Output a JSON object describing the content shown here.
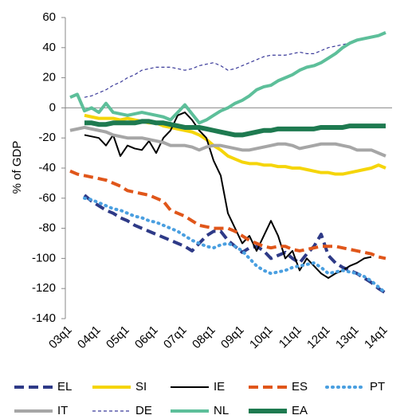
{
  "chart_data": {
    "type": "line",
    "y_label": "% of GDP",
    "categories": [
      "03q1",
      null,
      null,
      null,
      "04q1",
      null,
      null,
      null,
      "05q1",
      null,
      null,
      null,
      "06q1",
      null,
      null,
      null,
      "07q1",
      null,
      null,
      null,
      "08q1",
      null,
      null,
      null,
      "09q1",
      null,
      null,
      null,
      "10q1",
      null,
      null,
      null,
      "11q1",
      null,
      null,
      null,
      "12q1",
      null,
      null,
      null,
      "13q1",
      null,
      null,
      null,
      "14q1"
    ],
    "ylim": [
      -140,
      60
    ],
    "yticks": [
      -140,
      -120,
      -100,
      -80,
      -60,
      -40,
      -20,
      0,
      20,
      40,
      60
    ],
    "zero_line": true,
    "legend": "bottom",
    "series": [
      {
        "name": "EL",
        "color": "#2e3a87",
        "style": "dashed",
        "values": [
          null,
          null,
          -58,
          -62,
          -65,
          -68,
          -70,
          -73,
          -75,
          -78,
          -80,
          -82,
          -84,
          -86,
          -88,
          -90,
          -92,
          -95,
          -90,
          -85,
          -82,
          -82,
          -88,
          -92,
          -96,
          -93,
          -92,
          -95,
          -100,
          -98,
          -96,
          -100,
          -103,
          -97,
          -92,
          -84,
          -98,
          -103,
          -106,
          -108,
          -110,
          -113,
          -116,
          -120,
          -123
        ]
      },
      {
        "name": "SI",
        "color": "#f5d50a",
        "style": "solid",
        "values": [
          null,
          null,
          -5,
          -6,
          -7,
          -7,
          -7,
          -8,
          -7,
          -8,
          -9,
          -10,
          -10,
          -12,
          -13,
          -14,
          -15,
          -16,
          -18,
          -21,
          -25,
          -28,
          -32,
          -34,
          -36,
          -37,
          -37,
          -38,
          -38,
          -39,
          -39,
          -40,
          -40,
          -41,
          -42,
          -43,
          -43,
          -44,
          -44,
          -43,
          -42,
          -41,
          -40,
          -38,
          -40
        ]
      },
      {
        "name": "IE",
        "color": "#000000",
        "style": "thin",
        "values": [
          null,
          null,
          -18,
          -19,
          -20,
          -25,
          -18,
          -32,
          -25,
          -27,
          -28,
          -22,
          -30,
          -20,
          -15,
          -5,
          -3,
          -8,
          -15,
          -20,
          -35,
          -45,
          -70,
          -80,
          -90,
          -85,
          -95,
          -85,
          -75,
          -85,
          -100,
          -95,
          -108,
          -100,
          -105,
          -110,
          -113,
          -110,
          -108,
          -105,
          -103,
          -100,
          -99,
          null,
          null
        ]
      },
      {
        "name": "ES",
        "color": "#e0561a",
        "style": "dashed",
        "values": [
          -42,
          -44,
          -45,
          -46,
          -47,
          -48,
          -50,
          -52,
          -55,
          -56,
          -57,
          -58,
          -60,
          -62,
          -68,
          -70,
          -72,
          -75,
          -78,
          -79,
          -80,
          -80,
          -80,
          -82,
          -85,
          -88,
          -90,
          -92,
          -93,
          -92,
          -92,
          -94,
          -95,
          -94,
          -93,
          -92,
          -92,
          -92,
          -93,
          -94,
          -95,
          -96,
          -97,
          -99,
          -100
        ]
      },
      {
        "name": "PT",
        "color": "#4a9fe0",
        "style": "dotted",
        "values": [
          null,
          null,
          -60,
          -61,
          -63,
          -65,
          -67,
          -68,
          -70,
          -72,
          -73,
          -75,
          -76,
          -78,
          -80,
          -82,
          -85,
          -88,
          -90,
          -92,
          -93,
          -91,
          -90,
          -92,
          -95,
          -100,
          -105,
          -108,
          -110,
          -109,
          -108,
          -106,
          -105,
          -104,
          -103,
          -106,
          -110,
          -109,
          -108,
          -109,
          -110,
          -112,
          -115,
          -119,
          -123
        ]
      },
      {
        "name": "IT",
        "color": "#a6a6a6",
        "style": "solid",
        "values": [
          -15,
          -14,
          -13,
          -14,
          -15,
          -16,
          -18,
          -19,
          -20,
          -20,
          -20,
          -21,
          -22,
          -23,
          -25,
          -25,
          -25,
          -26,
          -28,
          -26,
          -25,
          -25,
          -26,
          -27,
          -28,
          -28,
          -27,
          -26,
          -25,
          -24,
          -24,
          -25,
          -27,
          -26,
          -25,
          -24,
          -24,
          -24,
          -25,
          -26,
          -28,
          -28,
          -28,
          -30,
          -32
        ]
      },
      {
        "name": "DE",
        "color": "#3b3b9a",
        "style": "thin-dashed",
        "values": [
          null,
          null,
          7,
          8,
          10,
          12,
          15,
          17,
          20,
          22,
          25,
          26,
          27,
          27,
          27,
          26,
          25,
          26,
          28,
          29,
          30,
          28,
          25,
          26,
          28,
          30,
          32,
          34,
          35,
          35,
          35,
          36,
          37,
          36,
          36,
          38,
          40,
          41,
          42,
          43,
          45,
          46,
          47,
          48,
          50
        ]
      },
      {
        "name": "NL",
        "color": "#5dbf9a",
        "style": "solid",
        "values": [
          7,
          9,
          -2,
          0,
          -3,
          3,
          -3,
          -4,
          -5,
          -4,
          -3,
          -4,
          -5,
          -6,
          -8,
          -3,
          2,
          -4,
          -10,
          -8,
          -5,
          -2,
          0,
          3,
          5,
          8,
          12,
          14,
          15,
          18,
          20,
          22,
          25,
          27,
          28,
          30,
          33,
          36,
          40,
          43,
          45,
          46,
          47,
          48,
          50
        ]
      },
      {
        "name": "EA",
        "color": "#1e7a50",
        "style": "thick",
        "values": [
          null,
          null,
          -10,
          -10,
          -11,
          -11,
          -10,
          -10,
          -10,
          -10,
          -9,
          -9,
          -10,
          -10,
          -11,
          -12,
          -13,
          -13,
          -13,
          -14,
          -15,
          -16,
          -17,
          -18,
          -18,
          -17,
          -16,
          -15,
          -15,
          -14,
          -14,
          -14,
          -14,
          -14,
          -14,
          -13,
          -13,
          -13,
          -13,
          -12,
          -12,
          -12,
          -12,
          -12,
          -12
        ]
      }
    ]
  }
}
